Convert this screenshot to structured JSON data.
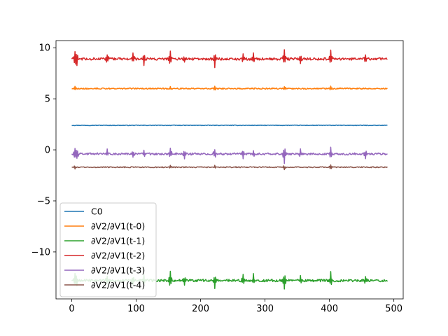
{
  "chart_data": {
    "type": "line",
    "title": "",
    "xlabel": "",
    "ylabel": "",
    "xlim": [
      -24.5,
      514.5
    ],
    "ylim": [
      -14.6,
      10.7
    ],
    "xticks": [
      0,
      100,
      200,
      300,
      400,
      500
    ],
    "xtick_labels": [
      "0",
      "100",
      "200",
      "300",
      "400",
      "500"
    ],
    "yticks": [
      -10,
      -5,
      0,
      5,
      10
    ],
    "ytick_labels": [
      "−10",
      "−5",
      "0",
      "5",
      "10"
    ],
    "grid": false,
    "legend_position": "lower-left",
    "x_range": [
      0,
      490
    ],
    "series": [
      {
        "name": "C0",
        "color": "#1f77b4",
        "baseline": 2.4,
        "noise": 0.03,
        "spikes": []
      },
      {
        "name": "∂V2/∂V1(t-0)",
        "color": "#ff7f0e",
        "baseline": 6.0,
        "noise": 0.06,
        "spikes": [
          [
            5,
            0.25
          ],
          [
            153,
            0.2
          ],
          [
            222,
            0.2
          ],
          [
            330,
            0.25
          ],
          [
            402,
            0.2
          ]
        ]
      },
      {
        "name": "∂V2/∂V1(t-1)",
        "color": "#2ca02c",
        "baseline": -12.8,
        "noise": 0.12,
        "spikes": [
          [
            5,
            0.7
          ],
          [
            8,
            -0.6
          ],
          [
            55,
            0.5
          ],
          [
            95,
            -0.5
          ],
          [
            112,
            0.6
          ],
          [
            153,
            0.8
          ],
          [
            175,
            -0.5
          ],
          [
            222,
            -0.8
          ],
          [
            266,
            0.5
          ],
          [
            282,
            0.6
          ],
          [
            330,
            -0.9
          ],
          [
            355,
            0.5
          ],
          [
            402,
            0.8
          ],
          [
            456,
            0.5
          ]
        ]
      },
      {
        "name": "∂V2/∂V1(t-2)",
        "color": "#d62728",
        "baseline": 8.9,
        "noise": 0.12,
        "spikes": [
          [
            5,
            0.7
          ],
          [
            8,
            -0.6
          ],
          [
            55,
            0.5
          ],
          [
            95,
            0.5
          ],
          [
            112,
            -0.6
          ],
          [
            153,
            0.8
          ],
          [
            175,
            -0.4
          ],
          [
            222,
            -0.8
          ],
          [
            266,
            0.5
          ],
          [
            282,
            0.6
          ],
          [
            330,
            0.9
          ],
          [
            355,
            -0.5
          ],
          [
            402,
            0.8
          ],
          [
            456,
            0.5
          ]
        ]
      },
      {
        "name": "∂V2/∂V1(t-3)",
        "color": "#9467bd",
        "baseline": -0.4,
        "noise": 0.1,
        "spikes": [
          [
            5,
            0.5
          ],
          [
            8,
            -0.5
          ],
          [
            55,
            0.4
          ],
          [
            95,
            -0.4
          ],
          [
            112,
            0.4
          ],
          [
            153,
            0.5
          ],
          [
            175,
            -0.4
          ],
          [
            222,
            0.5
          ],
          [
            266,
            -0.4
          ],
          [
            282,
            0.4
          ],
          [
            330,
            -0.9
          ],
          [
            355,
            0.4
          ],
          [
            402,
            0.6
          ],
          [
            456,
            -0.4
          ]
        ]
      },
      {
        "name": "∂V2/∂V1(t-4)",
        "color": "#8c564b",
        "baseline": -1.7,
        "noise": 0.05,
        "spikes": [
          [
            5,
            -0.2
          ],
          [
            153,
            0.2
          ],
          [
            222,
            0.15
          ],
          [
            330,
            -0.2
          ],
          [
            402,
            0.2
          ]
        ]
      }
    ]
  }
}
